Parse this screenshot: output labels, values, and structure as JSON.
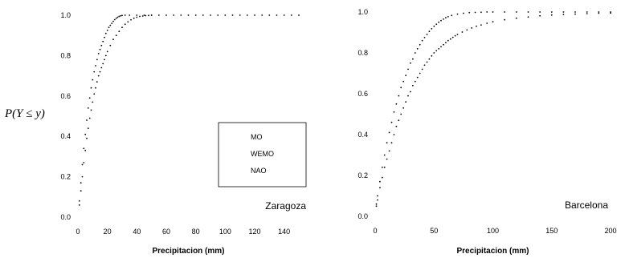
{
  "y_axis_label": "P(Y ≤ y)",
  "chart_data": [
    {
      "type": "scatter",
      "place": "Zaragoza",
      "xlabel": "Precipitacion (mm)",
      "xlim": [
        0,
        150
      ],
      "ylim": [
        0,
        1.0
      ],
      "x_ticks": [
        "0",
        "20",
        "40",
        "60",
        "80",
        "100",
        "120",
        "140"
      ],
      "y_ticks": [
        "0.0",
        "0.2",
        "0.4",
        "0.6",
        "0.8",
        "1.0"
      ],
      "legend": {
        "position": "bottom-right",
        "entries": [
          "MO",
          "WEMO",
          "NAO"
        ]
      },
      "series": [
        {
          "x": [
            1,
            2,
            3,
            4,
            5,
            6,
            7,
            8,
            9,
            10,
            11,
            12,
            13,
            14,
            15,
            16,
            17,
            18,
            19,
            20,
            21,
            22,
            23,
            24,
            25,
            26,
            27,
            28,
            29,
            30,
            32,
            35,
            40,
            45,
            50,
            55,
            60,
            65,
            70,
            75,
            80,
            85,
            90,
            95,
            100,
            105,
            110,
            115,
            120,
            125,
            130,
            135,
            140,
            145,
            150
          ],
          "y": [
            0.08,
            0.17,
            0.26,
            0.34,
            0.41,
            0.48,
            0.54,
            0.59,
            0.64,
            0.68,
            0.72,
            0.75,
            0.78,
            0.81,
            0.83,
            0.85,
            0.87,
            0.89,
            0.91,
            0.925,
            0.94,
            0.95,
            0.96,
            0.97,
            0.978,
            0.985,
            0.99,
            0.994,
            0.997,
            0.999,
            1.0,
            1.0,
            1.0,
            1.0,
            1.0,
            1.0,
            1.0,
            1.0,
            1.0,
            1.0,
            1.0,
            1.0,
            1.0,
            1.0,
            1.0,
            1.0,
            1.0,
            1.0,
            1.0,
            1.0,
            1.0,
            1.0,
            1.0,
            1.0,
            1.0
          ]
        },
        {
          "x": [
            1,
            2,
            3,
            4,
            5,
            6,
            7,
            8,
            9,
            10,
            11,
            12,
            13,
            14,
            15,
            16,
            17,
            18,
            19,
            20,
            22,
            24,
            26,
            28,
            30,
            32,
            34,
            36,
            38,
            40,
            42,
            44,
            46,
            48,
            50
          ],
          "y": [
            0.06,
            0.13,
            0.2,
            0.27,
            0.33,
            0.39,
            0.44,
            0.49,
            0.53,
            0.57,
            0.61,
            0.64,
            0.67,
            0.7,
            0.72,
            0.74,
            0.76,
            0.78,
            0.8,
            0.82,
            0.85,
            0.88,
            0.9,
            0.92,
            0.94,
            0.955,
            0.967,
            0.977,
            0.985,
            0.99,
            0.994,
            0.996,
            0.998,
            0.999,
            1.0
          ]
        }
      ]
    },
    {
      "type": "scatter",
      "place": "Barcelona",
      "xlabel": "Precipitacion (mm)",
      "xlim": [
        0,
        200
      ],
      "ylim": [
        0,
        1.0
      ],
      "x_ticks": [
        "0",
        "50",
        "100",
        "150",
        "200"
      ],
      "y_ticks": [
        "0.0",
        "0.2",
        "0.4",
        "0.6",
        "0.8",
        "1.0"
      ],
      "series": [
        {
          "x": [
            1,
            2,
            4,
            6,
            8,
            10,
            12,
            14,
            16,
            18,
            20,
            22,
            24,
            26,
            28,
            30,
            32,
            34,
            36,
            38,
            40,
            42,
            44,
            46,
            48,
            50,
            52,
            54,
            56,
            58,
            60,
            62,
            65,
            70,
            75,
            80,
            85,
            90,
            95,
            100,
            110,
            120,
            130,
            140,
            150,
            160,
            170,
            180,
            190,
            200
          ],
          "y": [
            0.06,
            0.1,
            0.17,
            0.24,
            0.3,
            0.36,
            0.41,
            0.46,
            0.51,
            0.55,
            0.59,
            0.63,
            0.66,
            0.69,
            0.72,
            0.75,
            0.77,
            0.8,
            0.82,
            0.84,
            0.86,
            0.875,
            0.89,
            0.905,
            0.918,
            0.93,
            0.94,
            0.95,
            0.958,
            0.965,
            0.972,
            0.977,
            0.983,
            0.99,
            0.994,
            0.997,
            0.998,
            0.999,
            1.0,
            1.0,
            1.0,
            1.0,
            1.0,
            1.0,
            1.0,
            1.0,
            1.0,
            1.0,
            1.0,
            1.0
          ]
        },
        {
          "x": [
            1,
            2,
            4,
            6,
            8,
            10,
            12,
            14,
            16,
            18,
            20,
            22,
            24,
            26,
            28,
            30,
            32,
            34,
            36,
            38,
            40,
            42,
            44,
            46,
            48,
            50,
            52,
            54,
            56,
            58,
            60,
            62,
            64,
            66,
            68,
            70,
            74,
            78,
            82,
            86,
            90,
            95,
            100,
            110,
            120,
            130,
            140,
            150,
            160,
            170,
            180,
            190,
            200
          ],
          "y": [
            0.05,
            0.08,
            0.14,
            0.19,
            0.24,
            0.28,
            0.32,
            0.36,
            0.4,
            0.44,
            0.47,
            0.5,
            0.53,
            0.56,
            0.59,
            0.61,
            0.64,
            0.66,
            0.68,
            0.7,
            0.72,
            0.74,
            0.755,
            0.77,
            0.785,
            0.8,
            0.81,
            0.82,
            0.83,
            0.84,
            0.85,
            0.86,
            0.868,
            0.876,
            0.884,
            0.89,
            0.902,
            0.912,
            0.922,
            0.93,
            0.937,
            0.945,
            0.952,
            0.962,
            0.97,
            0.976,
            0.981,
            0.985,
            0.988,
            0.99,
            0.992,
            0.994,
            0.995
          ]
        }
      ]
    }
  ]
}
